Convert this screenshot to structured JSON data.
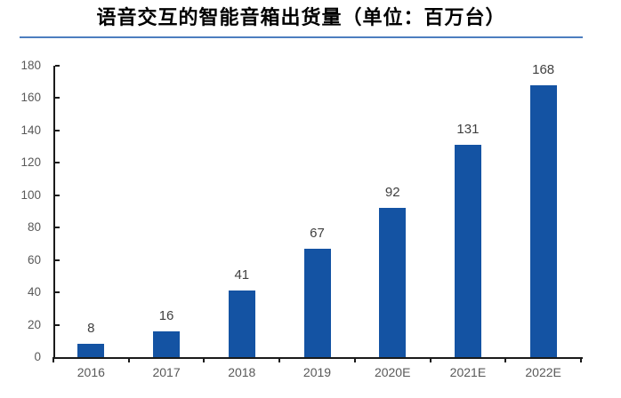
{
  "chart_data": {
    "type": "bar",
    "title": "语音交互的智能音箱出货量（单位：百万台）",
    "categories": [
      "2016",
      "2017",
      "2018",
      "2019",
      "2020E",
      "2021E",
      "2022E"
    ],
    "values": [
      8,
      16,
      41,
      67,
      92,
      131,
      168
    ],
    "xlabel": "",
    "ylabel": "",
    "ylim": [
      0,
      180
    ],
    "ytick_step": 20,
    "yticks": [
      0,
      20,
      40,
      60,
      80,
      100,
      120,
      140,
      160,
      180
    ],
    "grid": false,
    "legend_position": "none",
    "data_labels_shown": true,
    "colors": {
      "bar_fill": "#1453a3",
      "value_label": "#404040",
      "tick_label": "#595959",
      "axis_line": "#1a1a1a",
      "title_text": "#000000",
      "title_divider": "#4d7ebf",
      "background": "#ffffff"
    }
  }
}
